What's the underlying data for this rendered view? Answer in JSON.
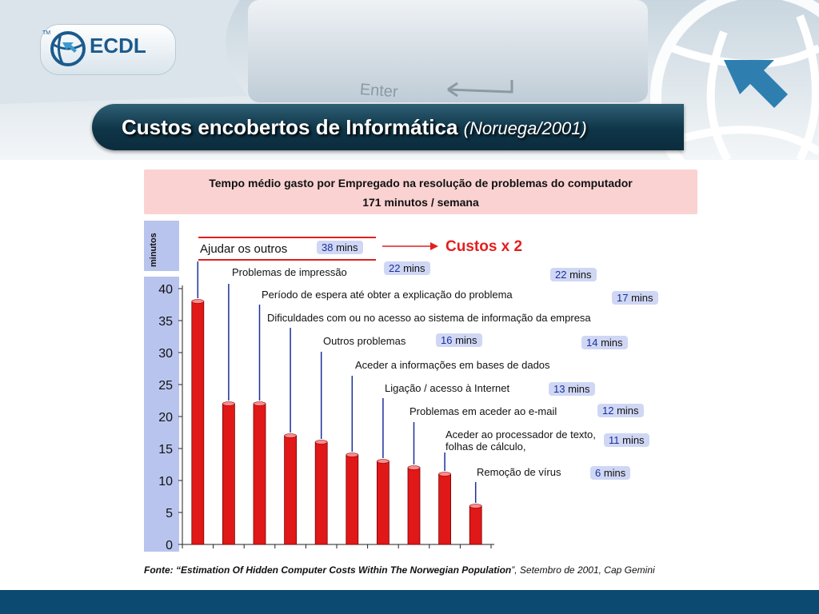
{
  "logo": {
    "text": "ECDL",
    "tm": "TM"
  },
  "header": {
    "title": "Custos encobertos de Informática",
    "subtitle": "(Noruega/2001)"
  },
  "info": {
    "line1": "Tempo médio gasto por Empregado na resolução de problemas do computador",
    "line2": "171 minutos / semana"
  },
  "annotation": {
    "callout": "Custos x 2"
  },
  "source": {
    "prefix": "Fonte: “",
    "title": "Estimation Of Hidden Computer Costs Within The Norwegian Population",
    "suffix": "”, Setembro de 2001, Cap Gemini"
  },
  "colors": {
    "bar": "#e01818",
    "badge": "#cfd7f4",
    "axis_panel": "#b9c4ee",
    "info_box": "#fbd2d2",
    "callout": "#e41e1e"
  },
  "chart_data": {
    "type": "bar",
    "ylabel": "minutos",
    "ylim": [
      0,
      40
    ],
    "yticks": [
      0,
      5,
      10,
      15,
      20,
      25,
      30,
      35,
      40
    ],
    "grid": false,
    "categories": [
      "Ajudar os outros",
      "Problemas de impressão",
      "Período de espera até obter a explicação do problema",
      "Dificuldades com ou no acesso ao sistema de informação da empresa",
      "Outros problemas",
      "Aceder a informações em bases de dados",
      "Ligação / acesso à Internet",
      "Problemas em aceder ao e-mail",
      "Aceder ao processador de texto, folhas de cálculo,",
      "Remoção de vírus"
    ],
    "values": [
      38,
      22,
      22,
      17,
      16,
      14,
      13,
      12,
      11,
      6
    ],
    "value_labels": [
      "38",
      "22",
      "22",
      "17",
      "16",
      "14",
      "13",
      "12",
      "11",
      "6"
    ],
    "unit_label": "mins"
  }
}
